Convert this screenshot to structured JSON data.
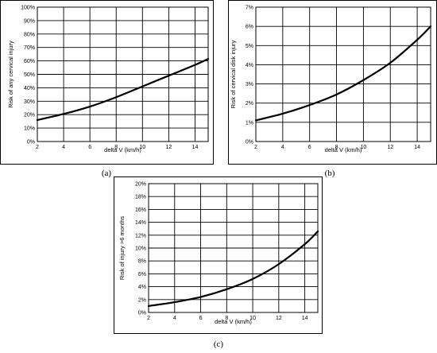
{
  "chart_data": [
    {
      "type": "line",
      "caption": "(a)",
      "xlabel": "delta V (km/h)",
      "ylabel": "Risk of any cervical injury",
      "xlim": [
        2,
        15
      ],
      "xticks": [
        2,
        4,
        6,
        8,
        10,
        12,
        14
      ],
      "ylim": [
        0,
        100
      ],
      "yticks": [
        0,
        10,
        20,
        30,
        40,
        50,
        60,
        70,
        80,
        90,
        100
      ],
      "ytick_suffix": "%",
      "grid": true,
      "x": [
        2,
        4,
        6,
        8,
        10,
        12,
        14,
        15
      ],
      "y": [
        16,
        20.5,
        26,
        33,
        41,
        49,
        57,
        61.5
      ]
    },
    {
      "type": "line",
      "caption": "(b)",
      "xlabel": "delta V (km/h)",
      "ylabel": "Risk of cervical disk injury",
      "xlim": [
        2,
        15
      ],
      "xticks": [
        2,
        4,
        6,
        8,
        10,
        12,
        14
      ],
      "ylim": [
        0,
        7
      ],
      "yticks": [
        0,
        1,
        2,
        3,
        4,
        5,
        6,
        7
      ],
      "ytick_suffix": "%",
      "grid": true,
      "x": [
        2,
        4,
        6,
        8,
        10,
        12,
        14,
        15
      ],
      "y": [
        1.1,
        1.45,
        1.9,
        2.45,
        3.2,
        4.1,
        5.3,
        6.0
      ]
    },
    {
      "type": "line",
      "caption": "(c)",
      "xlabel": "delta V (km/h)",
      "ylabel": "Risk of injury >6 months",
      "xlim": [
        2,
        15
      ],
      "xticks": [
        2,
        4,
        6,
        8,
        10,
        12,
        14
      ],
      "ylim": [
        0,
        20
      ],
      "yticks": [
        0,
        2,
        4,
        6,
        8,
        10,
        12,
        14,
        16,
        18,
        20
      ],
      "ytick_suffix": "%",
      "grid": true,
      "x": [
        2,
        4,
        6,
        8,
        10,
        12,
        14,
        15
      ],
      "y": [
        1.0,
        1.6,
        2.4,
        3.6,
        5.2,
        7.5,
        10.6,
        12.6
      ]
    }
  ]
}
